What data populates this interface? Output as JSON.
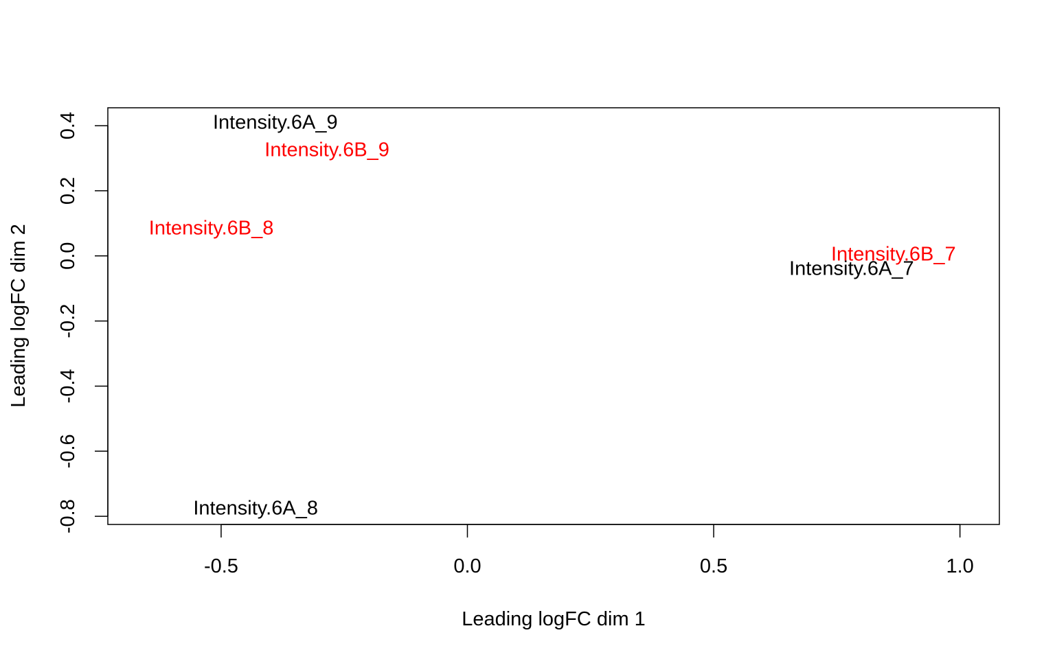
{
  "chart_data": {
    "type": "scatter",
    "title": "",
    "xlabel": "Leading logFC dim 1",
    "ylabel": "Leading logFC dim 2",
    "xlim": [
      -0.73,
      1.08
    ],
    "ylim": [
      -0.825,
      0.455
    ],
    "x_ticks": [
      -0.5,
      0.0,
      0.5,
      1.0
    ],
    "x_tick_labels": [
      "-0.5",
      "0.0",
      "0.5",
      "1.0"
    ],
    "y_ticks": [
      -0.8,
      -0.6,
      -0.4,
      -0.2,
      0.0,
      0.2,
      0.4
    ],
    "y_tick_labels": [
      "-0.8",
      "-0.6",
      "-0.4",
      "-0.2",
      "0.0",
      "0.2",
      "0.4"
    ],
    "grid": false,
    "colors": {
      "group_6A": "#000000",
      "group_6B": "#ff0000"
    },
    "points": [
      {
        "label": "Intensity.6A_9",
        "x": -0.39,
        "y": 0.41,
        "group": "group_6A"
      },
      {
        "label": "Intensity.6B_9",
        "x": -0.285,
        "y": 0.325,
        "group": "group_6B"
      },
      {
        "label": "Intensity.6B_8",
        "x": -0.52,
        "y": 0.085,
        "group": "group_6B"
      },
      {
        "label": "Intensity.6B_7",
        "x": 0.865,
        "y": 0.005,
        "group": "group_6B"
      },
      {
        "label": "Intensity.6A_7",
        "x": 0.78,
        "y": -0.04,
        "group": "group_6A"
      },
      {
        "label": "Intensity.6A_8",
        "x": -0.43,
        "y": -0.775,
        "group": "group_6A"
      }
    ]
  }
}
